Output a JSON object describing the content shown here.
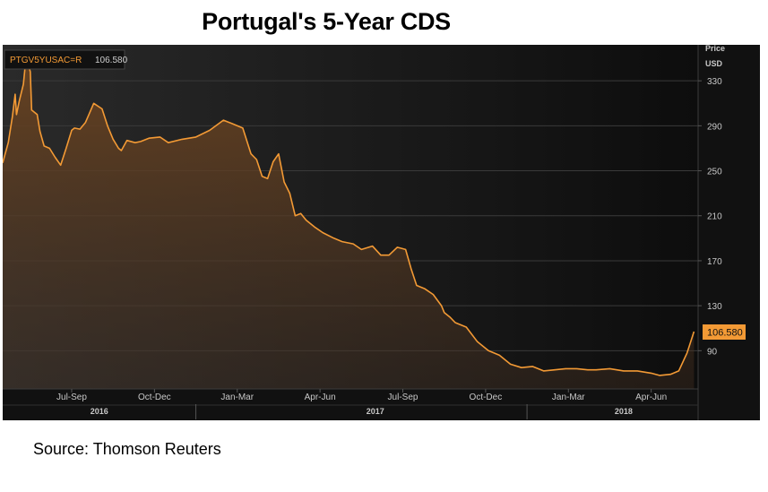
{
  "title": "Portugal's 5-Year CDS",
  "source": "Source: Thomson Reuters",
  "chart_data": {
    "type": "area",
    "title": "Portugal's 5-Year CDS",
    "series_name": "PTGV5YUSAC=R",
    "last_value_label": "106.580",
    "last_value": 106.58,
    "ylabel_lines": [
      "Price",
      "USD"
    ],
    "y_ticks": [
      90,
      130,
      170,
      210,
      250,
      290,
      330
    ],
    "ylim": [
      56,
      362
    ],
    "xlim": [
      0,
      25.2
    ],
    "x_quarter_labels": [
      {
        "label": "Jul-Sep",
        "x": 2.5
      },
      {
        "label": "Oct-Dec",
        "x": 5.5
      },
      {
        "label": "Jan-Mar",
        "x": 8.5
      },
      {
        "label": "Apr-Jun",
        "x": 11.5
      },
      {
        "label": "Jul-Sep",
        "x": 14.5
      },
      {
        "label": "Oct-Dec",
        "x": 17.5
      },
      {
        "label": "Jan-Mar",
        "x": 20.5
      },
      {
        "label": "Apr-Jun",
        "x": 23.5
      }
    ],
    "x_year_labels": [
      {
        "label": "2016",
        "x": 3.5
      },
      {
        "label": "2017",
        "x": 13.5
      },
      {
        "label": "2018",
        "x": 22.5
      }
    ],
    "year_dividers": [
      7.0,
      19.0
    ],
    "x_unit": "months since 2016-06-01",
    "x": [
      0.0,
      0.2,
      0.35,
      0.45,
      0.5,
      0.6,
      0.75,
      0.85,
      1.0,
      1.05,
      1.15,
      1.25,
      1.35,
      1.5,
      1.7,
      1.9,
      2.1,
      2.3,
      2.5,
      2.6,
      2.8,
      3.0,
      3.3,
      3.6,
      3.8,
      4.0,
      4.2,
      4.3,
      4.5,
      4.8,
      5.0,
      5.3,
      5.7,
      6.0,
      6.5,
      7.0,
      7.5,
      8.0,
      8.3,
      8.7,
      9.0,
      9.2,
      9.4,
      9.6,
      9.8,
      10.0,
      10.2,
      10.4,
      10.6,
      10.8,
      11.0,
      11.3,
      11.6,
      12.0,
      12.3,
      12.7,
      13.0,
      13.4,
      13.7,
      14.0,
      14.3,
      14.6,
      14.8,
      15.0,
      15.3,
      15.6,
      15.9,
      16.0,
      16.2,
      16.4,
      16.8,
      17.2,
      17.6,
      18.0,
      18.4,
      18.8,
      19.2,
      19.6,
      20.0,
      20.4,
      20.8,
      21.2,
      21.5,
      22.0,
      22.5,
      23.0,
      23.5,
      23.8,
      24.2,
      24.5,
      24.8,
      25.05
    ],
    "values": [
      257,
      275,
      298,
      318,
      300,
      312,
      327,
      352,
      338,
      304,
      302,
      300,
      285,
      272,
      270,
      262,
      255,
      270,
      286,
      288,
      287,
      293,
      310,
      305,
      290,
      278,
      270,
      268,
      277,
      275,
      276,
      279,
      280,
      275,
      278,
      280,
      286,
      295,
      292,
      288,
      265,
      260,
      245,
      243,
      258,
      265,
      240,
      230,
      210,
      212,
      206,
      200,
      195,
      190,
      187,
      185,
      180,
      183,
      175,
      175,
      182,
      180,
      163,
      148,
      145,
      140,
      130,
      124,
      120,
      115,
      111,
      98,
      90,
      86,
      78,
      75,
      76,
      72,
      73,
      74,
      74,
      73,
      73,
      74,
      72,
      72,
      70,
      68,
      69,
      72,
      88,
      107
    ]
  }
}
